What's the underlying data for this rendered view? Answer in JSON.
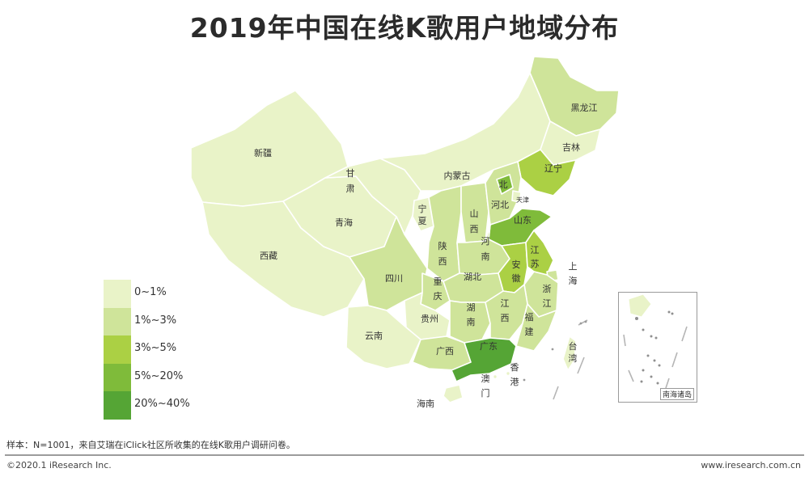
{
  "title": "2019年中国在线K歌用户地域分布",
  "colors": {
    "tier1": "#e9f3c8",
    "tier2": "#cfe49a",
    "tier3": "#abd044",
    "tier4": "#7fbb3a",
    "tier5": "#55a535"
  },
  "legend": [
    {
      "label": "0~1%",
      "color": "#e9f3c8"
    },
    {
      "label": "1%~3%",
      "color": "#cfe49a"
    },
    {
      "label": "3%~5%",
      "color": "#abd044"
    },
    {
      "label": "5%~20%",
      "color": "#7fbb3a"
    },
    {
      "label": "20%~40%",
      "color": "#55a535"
    }
  ],
  "provinces": [
    {
      "name": "新疆",
      "range": "0~1%"
    },
    {
      "name": "西藏",
      "range": "0~1%"
    },
    {
      "name": "青海",
      "range": "0~1%"
    },
    {
      "name": "甘肃",
      "range": "0~1%"
    },
    {
      "name": "内蒙古",
      "range": "0~1%"
    },
    {
      "name": "黑龙江",
      "range": "1%~3%"
    },
    {
      "name": "吉林",
      "range": "0~1%"
    },
    {
      "name": "辽宁",
      "range": "3%~5%"
    },
    {
      "name": "宁夏",
      "range": "0~1%"
    },
    {
      "name": "陕西",
      "range": "1%~3%"
    },
    {
      "name": "山西",
      "range": "1%~3%"
    },
    {
      "name": "河北",
      "range": "1%~3%"
    },
    {
      "name": "北京",
      "range": "5%~20%"
    },
    {
      "name": "天津",
      "range": "0~1%"
    },
    {
      "name": "山东",
      "range": "5%~20%"
    },
    {
      "name": "河南",
      "range": "1%~3%"
    },
    {
      "name": "四川",
      "range": "1%~3%"
    },
    {
      "name": "重庆",
      "range": "1%~3%"
    },
    {
      "name": "湖北",
      "range": "1%~3%"
    },
    {
      "name": "安徽",
      "range": "3%~5%"
    },
    {
      "name": "江苏",
      "range": "3%~5%"
    },
    {
      "name": "上海",
      "range": "1%~3%"
    },
    {
      "name": "浙江",
      "range": "1%~3%"
    },
    {
      "name": "贵州",
      "range": "0~1%"
    },
    {
      "name": "湖南",
      "range": "1%~3%"
    },
    {
      "name": "江西",
      "range": "1%~3%"
    },
    {
      "name": "福建",
      "range": "1%~3%"
    },
    {
      "name": "云南",
      "range": "0~1%"
    },
    {
      "name": "广西",
      "range": "1%~3%"
    },
    {
      "name": "广东",
      "range": "20%~40%"
    },
    {
      "name": "海南",
      "range": "0~1%"
    },
    {
      "name": "台湾",
      "range": "0~1%"
    },
    {
      "name": "香港",
      "range": "0~1%"
    },
    {
      "name": "澳门",
      "range": "0~1%"
    }
  ],
  "inset_label": "南海诸岛",
  "note": "样本：N=1001，来自艾瑞在iClick社区所收集的在线K歌用户调研问卷。",
  "copyright": "©2020.1 iResearch Inc.",
  "website": "www.iresearch.com.cn"
}
